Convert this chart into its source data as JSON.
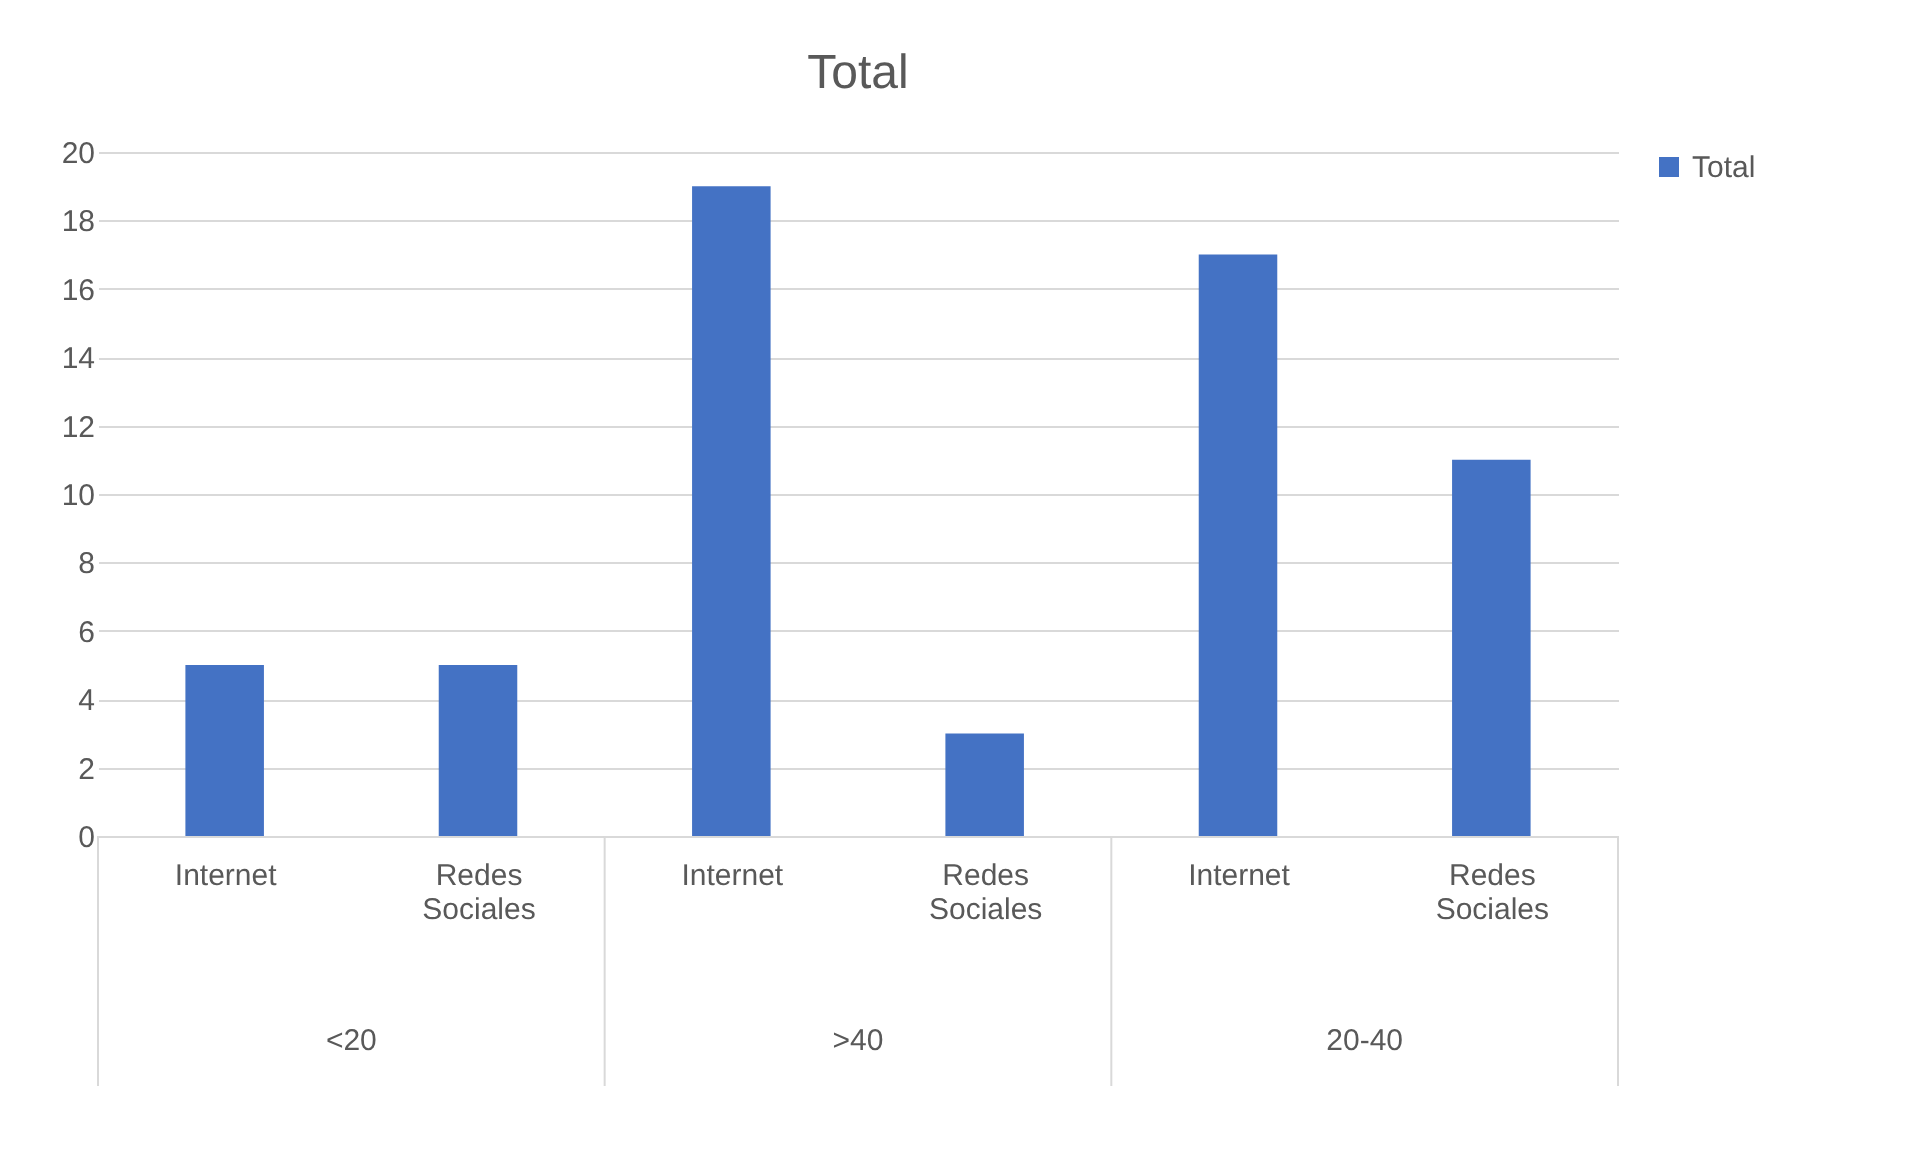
{
  "chart_data": {
    "type": "bar",
    "title": "Total",
    "categories": [
      "Internet",
      "Redes Sociales",
      "Internet",
      "Redes Sociales",
      "Internet",
      "Redes Sociales"
    ],
    "series": [
      {
        "name": "Total",
        "color": "#4472c4",
        "values": [
          5,
          5,
          19,
          3,
          17,
          11
        ]
      }
    ],
    "annotations": [
      "<20",
      ">40",
      "20-40"
    ],
    "ylim": [
      0,
      20
    ],
    "yticks": [
      0,
      2,
      4,
      6,
      8,
      10,
      12,
      14,
      16,
      18,
      20
    ],
    "grid": "y",
    "legend": "right"
  }
}
